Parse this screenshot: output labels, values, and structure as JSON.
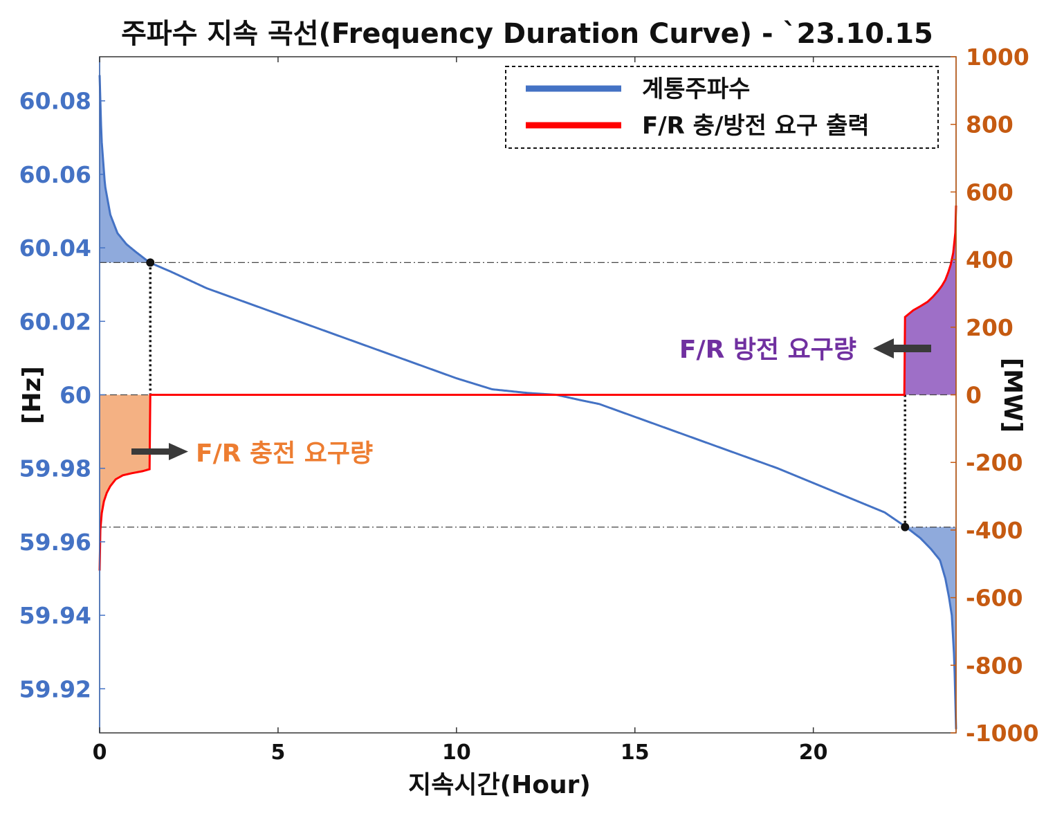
{
  "chart_data": {
    "type": "line",
    "title": "주파수 지속 곡선(Frequency Duration Curve) - `23.10.15",
    "xlabel": "지속시간(Hour)",
    "ylabel_left": "[Hz]",
    "ylabel_right": "[MW]",
    "xlim": [
      0,
      24
    ],
    "ylim_left": [
      59.908,
      60.092
    ],
    "ylim_right": [
      -1000,
      1000
    ],
    "x_ticks": [
      "0",
      "5",
      "10",
      "15",
      "20"
    ],
    "x_tick_values": [
      0,
      5,
      10,
      15,
      20
    ],
    "y_left_ticks": [
      "60.08",
      "60.06",
      "60.04",
      "60.02",
      "60",
      "59.98",
      "59.96",
      "59.94",
      "59.92"
    ],
    "y_left_tick_values": [
      60.08,
      60.06,
      60.04,
      60.02,
      60.0,
      59.98,
      59.96,
      59.94,
      59.92
    ],
    "y_right_ticks": [
      "1000",
      "800",
      "600",
      "400",
      "200",
      "0",
      "-200",
      "-400",
      "-600",
      "-800",
      "-1000"
    ],
    "y_right_tick_values": [
      1000,
      800,
      600,
      400,
      200,
      0,
      -200,
      -400,
      -600,
      -800,
      -1000
    ],
    "legend_position": "top-right",
    "series": [
      {
        "name": "계통주파수",
        "axis": "left",
        "color": "#4472c4",
        "x": [
          0,
          0.05,
          0.15,
          0.3,
          0.5,
          0.75,
          1.0,
          1.4,
          2,
          3,
          4,
          5,
          6,
          7,
          8,
          9,
          10,
          11,
          12,
          12.8,
          13.5,
          14,
          15,
          16,
          17,
          18,
          19,
          20,
          21,
          22,
          22.6,
          23.0,
          23.3,
          23.55,
          23.7,
          23.8,
          23.88,
          23.95,
          24.0
        ],
        "values": [
          60.087,
          60.07,
          60.057,
          60.049,
          60.044,
          60.041,
          60.039,
          60.036,
          60.0335,
          60.029,
          60.0255,
          60.022,
          60.0185,
          60.015,
          60.0115,
          60.008,
          60.0045,
          60.0015,
          60.0005,
          60.0,
          59.9985,
          59.9975,
          59.994,
          59.9905,
          59.987,
          59.9835,
          59.98,
          59.976,
          59.972,
          59.968,
          59.964,
          59.961,
          59.958,
          59.955,
          59.95,
          59.945,
          59.94,
          59.928,
          59.909
        ]
      },
      {
        "name": "F/R 충/방전 요구 출력",
        "axis": "right",
        "color": "#ff0000",
        "x": [
          0,
          0.02,
          0.06,
          0.12,
          0.2,
          0.3,
          0.45,
          0.65,
          0.9,
          1.2,
          1.4,
          1.42,
          3,
          6,
          10,
          14,
          18,
          22,
          22.55,
          22.57,
          22.8,
          23.0,
          23.2,
          23.35,
          23.5,
          23.6,
          23.7,
          23.78,
          23.85,
          23.92,
          23.98,
          24.0
        ],
        "values": [
          -520,
          -400,
          -350,
          -315,
          -290,
          -270,
          -250,
          -238,
          -232,
          -226,
          -220,
          0,
          0,
          0,
          0,
          0,
          0,
          0,
          0,
          230,
          250,
          262,
          275,
          290,
          308,
          322,
          340,
          362,
          385,
          420,
          480,
          560
        ]
      }
    ],
    "reference_lines": {
      "hz_values": [
        60.036,
        60.0,
        59.964
      ],
      "duration_hours": [
        1.42,
        22.57
      ]
    },
    "annotations": {
      "charge": "F/R 충전 요구량",
      "discharge": "F/R 방전 요구량"
    },
    "fill_colors": {
      "frequency_tail": "#8faadc",
      "charge": "#f4b183",
      "discharge": "#9e6fc7"
    }
  }
}
